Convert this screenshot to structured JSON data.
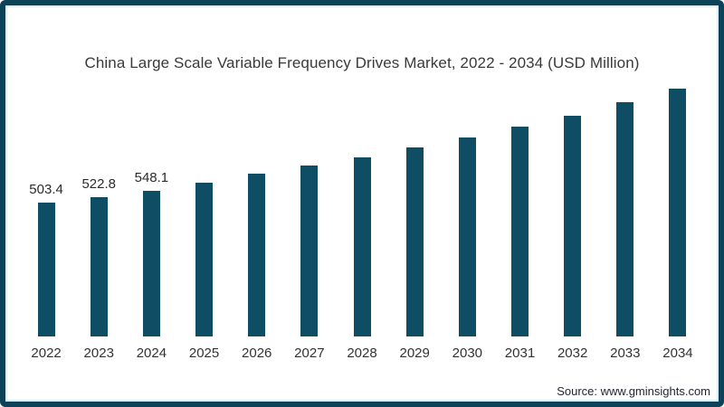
{
  "frame": {
    "border_color": "#0e4258",
    "background_color": "#ffffff"
  },
  "chart_data": {
    "type": "bar",
    "title": "China Large Scale Variable Frequency Drives Market, 2022 - 2034 (USD Million)",
    "categories": [
      "2022",
      "2023",
      "2024",
      "2025",
      "2026",
      "2027",
      "2028",
      "2029",
      "2030",
      "2031",
      "2032",
      "2033",
      "2034"
    ],
    "values": [
      503.4,
      522.8,
      548.1,
      577,
      611,
      641,
      672,
      709,
      747,
      787,
      828,
      879,
      930
    ],
    "data_labels": [
      "503.4",
      "522.8",
      "548.1",
      "",
      "",
      "",
      "",
      "",
      "",
      "",
      "",
      "",
      ""
    ],
    "bar_color": "#0f4d64",
    "xlabel": "",
    "ylabel": "",
    "ylim": [
      0,
      960
    ],
    "grid": false,
    "legend": false,
    "orientation": "vertical"
  },
  "source": {
    "label": "Source: www.gminsights.com"
  }
}
